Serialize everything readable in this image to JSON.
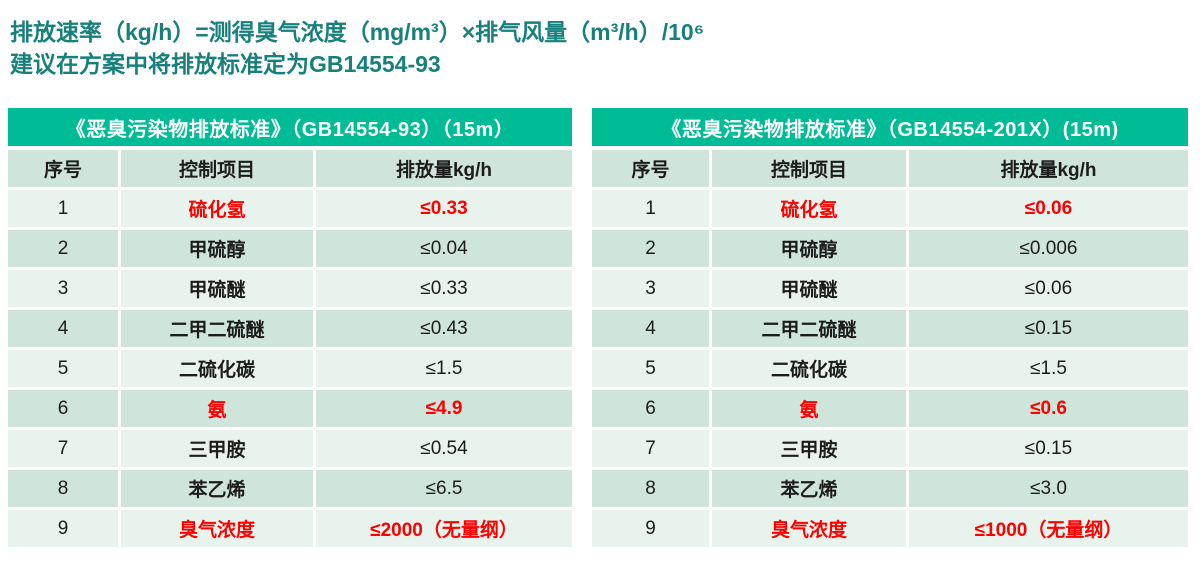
{
  "page": {
    "formula_line": "排放速率（kg/h）=测得臭气浓度（mg/m³）×排气风量（m³/h）/10⁶",
    "recommendation_line": "建议在方案中将排放标准定为GB14554-93"
  },
  "colors": {
    "accent_green": "#00bc96",
    "title_teal": "#17807d",
    "highlight_red": "#fe0000",
    "row_light": "#e9f3ee",
    "row_dark": "#cfe5db"
  },
  "tables": [
    {
      "title": "《恶臭污染物排放标准》（GB14554-93）（15m）",
      "columns": {
        "no": "序号",
        "item": "控制项目",
        "value": "排放量kg/h"
      },
      "rows": [
        {
          "no": "1",
          "item": "硫化氢",
          "value": "≤0.33",
          "highlight": true
        },
        {
          "no": "2",
          "item": "甲硫醇",
          "value": "≤0.04",
          "highlight": false
        },
        {
          "no": "3",
          "item": "甲硫醚",
          "value": "≤0.33",
          "highlight": false
        },
        {
          "no": "4",
          "item": "二甲二硫醚",
          "value": "≤0.43",
          "highlight": false
        },
        {
          "no": "5",
          "item": "二硫化碳",
          "value": "≤1.5",
          "highlight": false
        },
        {
          "no": "6",
          "item": "氨",
          "value": "≤4.9",
          "highlight": true
        },
        {
          "no": "7",
          "item": "三甲胺",
          "value": "≤0.54",
          "highlight": false
        },
        {
          "no": "8",
          "item": "苯乙烯",
          "value": "≤6.5",
          "highlight": false
        },
        {
          "no": "9",
          "item": "臭气浓度",
          "value": "≤2000（无量纲）",
          "highlight": true
        }
      ]
    },
    {
      "title": "《恶臭污染物排放标准》（GB14554-201X）(15m)",
      "columns": {
        "no": "序号",
        "item": "控制项目",
        "value": "排放量kg/h"
      },
      "rows": [
        {
          "no": "1",
          "item": "硫化氢",
          "value": "≤0.06",
          "highlight": true
        },
        {
          "no": "2",
          "item": "甲硫醇",
          "value": "≤0.006",
          "highlight": false
        },
        {
          "no": "3",
          "item": "甲硫醚",
          "value": "≤0.06",
          "highlight": false
        },
        {
          "no": "4",
          "item": "二甲二硫醚",
          "value": "≤0.15",
          "highlight": false
        },
        {
          "no": "5",
          "item": "二硫化碳",
          "value": "≤1.5",
          "highlight": false
        },
        {
          "no": "6",
          "item": "氨",
          "value": "≤0.6",
          "highlight": true
        },
        {
          "no": "7",
          "item": "三甲胺",
          "value": "≤0.15",
          "highlight": false
        },
        {
          "no": "8",
          "item": "苯乙烯",
          "value": "≤3.0",
          "highlight": false
        },
        {
          "no": "9",
          "item": "臭气浓度",
          "value": "≤1000（无量纲）",
          "highlight": true
        }
      ]
    }
  ]
}
